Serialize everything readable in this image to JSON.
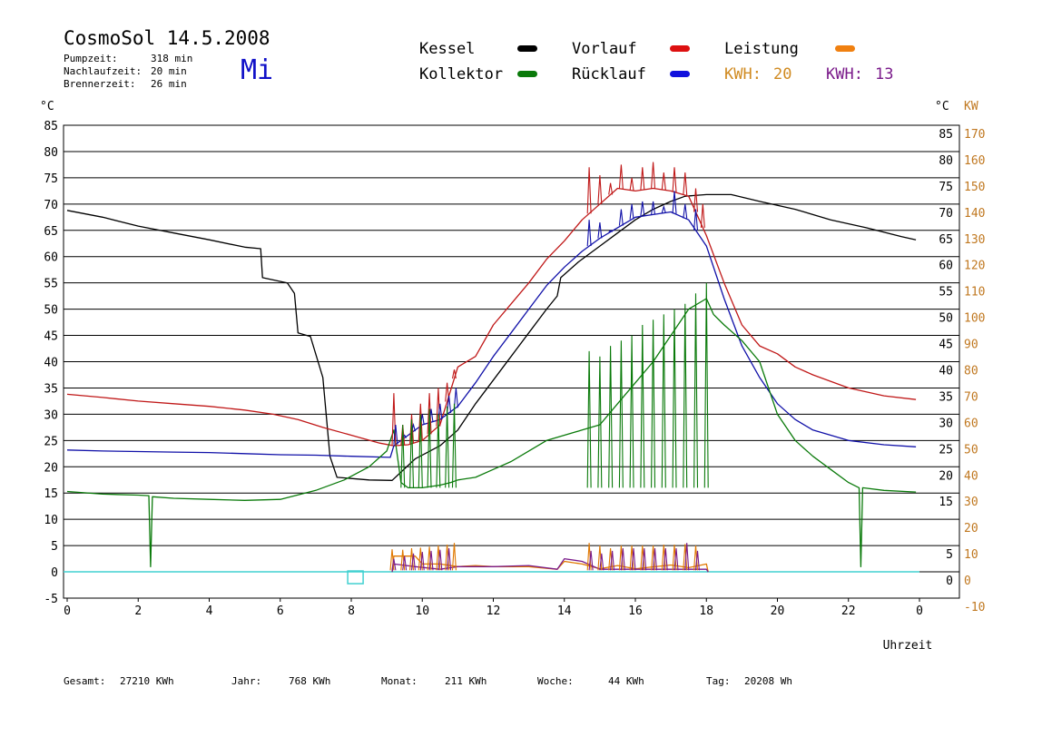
{
  "header": {
    "title": "CosmoSol 14.5.2008",
    "weekday": "Mi",
    "pump_label": "Pumpzeit:",
    "pump_value": "318 min",
    "overrun_label": "Nachlaufzeit:",
    "overrun_value": "20 min",
    "burner_label": "Brennerzeit:",
    "burner_value": "26 min"
  },
  "legend": {
    "kessel": "Kessel",
    "kollektor": "Kollektor",
    "vorlauf": "Vorlauf",
    "ruecklauf": "Rücklauf",
    "leistung": "Leistung",
    "kwh1_label": "KWH:",
    "kwh1_value": "20",
    "kwh2_label": "KWH:",
    "kwh2_value": "13"
  },
  "colors": {
    "kessel": "#000000",
    "kollektor": "#0a7a0a",
    "vorlauf": "#c01818",
    "ruecklauf": "#1010a8",
    "leistung": "#e07800",
    "leistung2": "#7a1a8a",
    "zero": "#40d0d0",
    "kw_axis": "#c07820",
    "grid": "#000000"
  },
  "footer": {
    "gesamt_label": "Gesamt:",
    "gesamt_value": "27210 KWh",
    "jahr_label": "Jahr:",
    "jahr_value": "768 KWh",
    "monat_label": "Monat:",
    "monat_value": "211 KWh",
    "woche_label": "Woche:",
    "woche_value": "44 KWh",
    "tag_label": "Tag:",
    "tag_value": "20208 Wh"
  },
  "chart_data": {
    "type": "line",
    "xlabel": "Uhrzeit",
    "ylabel": "°C",
    "y2label": "KW",
    "xlim": [
      0,
      24
    ],
    "ylim": [
      -5,
      85
    ],
    "y2lim": [
      -10,
      170
    ],
    "grid": true,
    "x_ticks": [
      "0",
      "2",
      "4",
      "6",
      "8",
      "10",
      "12",
      "14",
      "16",
      "18",
      "20",
      "22",
      "0"
    ],
    "y_ticks": [
      -5,
      0,
      5,
      10,
      15,
      20,
      25,
      30,
      35,
      40,
      45,
      50,
      55,
      60,
      65,
      70,
      75,
      80,
      85
    ],
    "y_right_ticks": [
      0,
      5,
      15,
      20,
      25,
      30,
      35,
      40,
      45,
      50,
      55,
      60,
      65,
      70,
      75,
      80,
      85
    ],
    "y2_ticks": [
      -10,
      0,
      10,
      20,
      30,
      40,
      50,
      60,
      70,
      80,
      90,
      100,
      110,
      120,
      130,
      140,
      150,
      160,
      170
    ],
    "series": [
      {
        "name": "Kessel",
        "key": "kessel",
        "points": [
          [
            0,
            68.8
          ],
          [
            1,
            67.5
          ],
          [
            2,
            65.8
          ],
          [
            3,
            64.5
          ],
          [
            4,
            63.2
          ],
          [
            5,
            61.8
          ],
          [
            5.45,
            61.5
          ],
          [
            5.5,
            56
          ],
          [
            6.2,
            55
          ],
          [
            6.4,
            53
          ],
          [
            6.5,
            45.5
          ],
          [
            6.85,
            44.8
          ],
          [
            7.2,
            37
          ],
          [
            7.4,
            22
          ],
          [
            7.6,
            18
          ],
          [
            8.5,
            17.5
          ],
          [
            9.15,
            17.4
          ],
          [
            9.4,
            19
          ],
          [
            9.8,
            21.5
          ],
          [
            10.5,
            24
          ],
          [
            11,
            27
          ],
          [
            11.5,
            32
          ],
          [
            12,
            36.5
          ],
          [
            12.5,
            41
          ],
          [
            13,
            45.5
          ],
          [
            13.5,
            50
          ],
          [
            13.8,
            52.5
          ],
          [
            13.9,
            56
          ],
          [
            14.4,
            59
          ],
          [
            15,
            62
          ],
          [
            15.5,
            64.5
          ],
          [
            16,
            67
          ],
          [
            16.5,
            69
          ],
          [
            17,
            70.5
          ],
          [
            17.4,
            71.5
          ],
          [
            18,
            71.8
          ],
          [
            18.7,
            71.8
          ],
          [
            19.5,
            70.5
          ],
          [
            20.5,
            69
          ],
          [
            21.5,
            67
          ],
          [
            22.5,
            65.5
          ],
          [
            23.5,
            63.8
          ],
          [
            23.9,
            63.2
          ]
        ]
      },
      {
        "name": "Vorlauf",
        "key": "vorlauf",
        "points": [
          [
            0,
            33.8
          ],
          [
            1,
            33.2
          ],
          [
            2,
            32.5
          ],
          [
            3,
            32
          ],
          [
            4,
            31.5
          ],
          [
            5,
            30.8
          ],
          [
            5.8,
            30
          ],
          [
            6.5,
            29
          ],
          [
            7.2,
            27.5
          ],
          [
            8,
            26
          ],
          [
            8.8,
            24.5
          ],
          [
            9.2,
            24
          ],
          [
            9.6,
            24.2
          ],
          [
            10,
            25
          ],
          [
            10.5,
            28
          ],
          [
            11,
            39
          ],
          [
            11.5,
            41
          ],
          [
            12,
            47
          ],
          [
            12.5,
            51
          ],
          [
            13,
            55
          ],
          [
            13.5,
            59.5
          ],
          [
            14,
            63
          ],
          [
            14.5,
            67
          ],
          [
            15,
            70
          ],
          [
            15.5,
            73
          ],
          [
            16,
            72.5
          ],
          [
            16.5,
            73
          ],
          [
            17,
            72.5
          ],
          [
            17.5,
            71.5
          ],
          [
            18,
            64
          ],
          [
            18.5,
            55
          ],
          [
            19,
            47
          ],
          [
            19.5,
            43
          ],
          [
            20,
            41.5
          ],
          [
            20.5,
            39
          ],
          [
            21,
            37.5
          ],
          [
            22,
            35
          ],
          [
            23,
            33.5
          ],
          [
            23.9,
            32.8
          ]
        ]
      },
      {
        "name": "Rücklauf",
        "key": "ruecklauf",
        "points": [
          [
            0,
            23.2
          ],
          [
            1,
            23
          ],
          [
            2,
            22.9
          ],
          [
            3,
            22.8
          ],
          [
            4,
            22.7
          ],
          [
            5,
            22.5
          ],
          [
            6,
            22.3
          ],
          [
            7,
            22.2
          ],
          [
            8,
            22
          ],
          [
            9.1,
            21.8
          ],
          [
            9.2,
            24
          ],
          [
            10,
            28
          ],
          [
            10.5,
            29
          ],
          [
            11,
            31.5
          ],
          [
            11.5,
            36
          ],
          [
            12,
            41
          ],
          [
            12.5,
            45.5
          ],
          [
            13,
            50
          ],
          [
            13.5,
            54.5
          ],
          [
            14,
            58
          ],
          [
            14.5,
            61
          ],
          [
            15,
            63.5
          ],
          [
            15.5,
            65.5
          ],
          [
            16,
            67.5
          ],
          [
            16.5,
            68
          ],
          [
            17,
            68.5
          ],
          [
            17.5,
            67
          ],
          [
            18,
            62
          ],
          [
            18.5,
            52
          ],
          [
            19,
            43
          ],
          [
            19.5,
            37
          ],
          [
            20,
            32
          ],
          [
            20.5,
            29
          ],
          [
            21,
            27
          ],
          [
            22,
            25
          ],
          [
            23,
            24.2
          ],
          [
            23.9,
            23.8
          ]
        ]
      },
      {
        "name": "Kollektor",
        "key": "kollektor",
        "points": [
          [
            0,
            15.3
          ],
          [
            1,
            14.8
          ],
          [
            2,
            14.6
          ],
          [
            2.3,
            14.5
          ],
          [
            2.35,
            1
          ],
          [
            2.4,
            14.3
          ],
          [
            3,
            14
          ],
          [
            4,
            13.8
          ],
          [
            5,
            13.6
          ],
          [
            6,
            13.8
          ],
          [
            7,
            15.5
          ],
          [
            7.8,
            17.5
          ],
          [
            8.5,
            20
          ],
          [
            9,
            23
          ],
          [
            9.2,
            27
          ],
          [
            9.4,
            17
          ],
          [
            9.6,
            16
          ],
          [
            10,
            16
          ],
          [
            10.5,
            16.5
          ],
          [
            10.8,
            17
          ],
          [
            11,
            17.5
          ],
          [
            11.5,
            18
          ],
          [
            12,
            19.5
          ],
          [
            12.5,
            21
          ],
          [
            13,
            23
          ],
          [
            13.5,
            25
          ],
          [
            14,
            26
          ],
          [
            14.5,
            27
          ],
          [
            15,
            28
          ],
          [
            15.5,
            32
          ],
          [
            16,
            36
          ],
          [
            16.5,
            40
          ],
          [
            17,
            45
          ],
          [
            17.5,
            50
          ],
          [
            18,
            52
          ],
          [
            18.2,
            49
          ],
          [
            18.5,
            47
          ],
          [
            19,
            44
          ],
          [
            19.5,
            40
          ],
          [
            20,
            30
          ],
          [
            20.5,
            25
          ],
          [
            21,
            22
          ],
          [
            21.5,
            19.5
          ],
          [
            22,
            17
          ],
          [
            22.3,
            16
          ],
          [
            22.35,
            1
          ],
          [
            22.4,
            16
          ],
          [
            23,
            15.5
          ],
          [
            23.9,
            15.2
          ]
        ]
      },
      {
        "name": "Leistung",
        "key": "leistung",
        "points": [
          [
            9.15,
            0
          ],
          [
            9.2,
            3
          ],
          [
            9.8,
            3
          ],
          [
            10,
            1.5
          ],
          [
            10.5,
            1.5
          ],
          [
            11,
            1
          ],
          [
            11.5,
            1.2
          ],
          [
            12,
            1
          ],
          [
            13,
            1
          ],
          [
            13.8,
            0.5
          ],
          [
            14,
            2
          ],
          [
            14.5,
            1.5
          ],
          [
            15,
            0.6
          ],
          [
            15.5,
            1.2
          ],
          [
            16,
            0.6
          ],
          [
            17,
            1.3
          ],
          [
            17.5,
            0.8
          ],
          [
            18,
            1.5
          ],
          [
            18.05,
            0
          ]
        ]
      },
      {
        "name": "KWH",
        "key": "leistung2",
        "points": [
          [
            9.15,
            0
          ],
          [
            9.2,
            1.5
          ],
          [
            9.8,
            1
          ],
          [
            10.5,
            0.5
          ],
          [
            11,
            1
          ],
          [
            12,
            1
          ],
          [
            13,
            1.2
          ],
          [
            13.8,
            0.5
          ],
          [
            14,
            2.5
          ],
          [
            14.5,
            2
          ],
          [
            15,
            0.5
          ],
          [
            15.5,
            0.5
          ],
          [
            16,
            0.5
          ],
          [
            17,
            0.5
          ],
          [
            18,
            0.5
          ],
          [
            18.05,
            0
          ]
        ]
      }
    ],
    "spikes": {
      "vorlauf": [
        [
          9.2,
          34
        ],
        [
          9.45,
          28
        ],
        [
          9.7,
          30
        ],
        [
          9.95,
          32
        ],
        [
          10.2,
          34
        ],
        [
          10.45,
          35
        ],
        [
          10.7,
          36
        ],
        [
          10.9,
          38.5
        ],
        [
          14.7,
          77
        ],
        [
          15.0,
          75.5
        ],
        [
          15.3,
          74
        ],
        [
          15.6,
          77.5
        ],
        [
          15.9,
          75
        ],
        [
          16.2,
          77
        ],
        [
          16.5,
          78
        ],
        [
          16.8,
          76
        ],
        [
          17.1,
          77
        ],
        [
          17.4,
          76
        ],
        [
          17.7,
          73
        ],
        [
          17.9,
          70
        ]
      ],
      "ruecklauf": [
        [
          9.25,
          28
        ],
        [
          9.5,
          26
        ],
        [
          9.75,
          28
        ],
        [
          10.0,
          30
        ],
        [
          10.25,
          31
        ],
        [
          10.5,
          32
        ],
        [
          10.75,
          33.5
        ],
        [
          10.95,
          35
        ],
        [
          14.7,
          67
        ],
        [
          15.0,
          66.5
        ],
        [
          15.3,
          65
        ],
        [
          15.6,
          69
        ],
        [
          15.9,
          70
        ],
        [
          16.2,
          70.5
        ],
        [
          16.5,
          70.5
        ],
        [
          16.8,
          69.5
        ],
        [
          17.1,
          72.5
        ],
        [
          17.4,
          70
        ],
        [
          17.7,
          69
        ]
      ],
      "kollektor": [
        [
          9.45,
          28
        ],
        [
          9.7,
          29
        ],
        [
          9.95,
          30
        ],
        [
          10.2,
          31
        ],
        [
          10.45,
          30
        ],
        [
          10.7,
          31.5
        ],
        [
          10.9,
          32
        ],
        [
          14.7,
          42
        ],
        [
          15.0,
          41
        ],
        [
          15.3,
          43
        ],
        [
          15.6,
          44
        ],
        [
          15.9,
          45
        ],
        [
          16.2,
          47
        ],
        [
          16.5,
          48
        ],
        [
          16.8,
          49
        ],
        [
          17.1,
          50
        ],
        [
          17.4,
          51
        ],
        [
          17.7,
          53
        ],
        [
          18.0,
          55
        ]
      ],
      "leistung": [
        [
          9.15,
          4.3
        ],
        [
          9.45,
          4.2
        ],
        [
          9.7,
          4.5
        ],
        [
          9.95,
          4.6
        ],
        [
          10.2,
          4.8
        ],
        [
          10.45,
          5
        ],
        [
          10.7,
          5.2
        ],
        [
          10.9,
          5.5
        ],
        [
          14.7,
          5.5
        ],
        [
          15.0,
          5
        ],
        [
          15.3,
          4.5
        ],
        [
          15.6,
          5
        ],
        [
          15.9,
          5
        ],
        [
          16.2,
          5
        ],
        [
          16.5,
          5
        ],
        [
          16.8,
          5.2
        ],
        [
          17.1,
          5.2
        ],
        [
          17.4,
          5.3
        ],
        [
          17.7,
          5
        ]
      ],
      "leistung2": [
        [
          9.2,
          2.5
        ],
        [
          9.5,
          3
        ],
        [
          9.75,
          3.5
        ],
        [
          10.0,
          3.8
        ],
        [
          10.25,
          4
        ],
        [
          10.5,
          4.2
        ],
        [
          10.75,
          4.5
        ],
        [
          14.75,
          4
        ],
        [
          15.05,
          3.5
        ],
        [
          15.35,
          4
        ],
        [
          15.65,
          4.5
        ],
        [
          15.95,
          4.5
        ],
        [
          16.25,
          4.5
        ],
        [
          16.55,
          4.5
        ],
        [
          16.85,
          4.5
        ],
        [
          17.15,
          4.5
        ],
        [
          17.45,
          5.5
        ],
        [
          17.75,
          4
        ]
      ]
    }
  }
}
